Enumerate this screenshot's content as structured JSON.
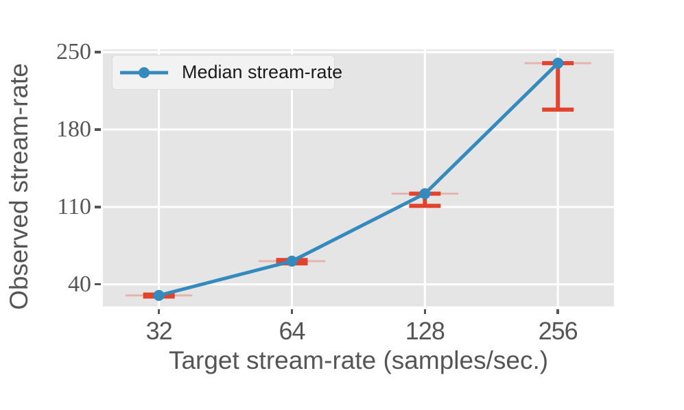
{
  "chart_data": {
    "type": "line",
    "title": "",
    "xlabel": "Target stream-rate (samples/sec.)",
    "ylabel": "Observed stream-rate",
    "x_scale": "log2",
    "xlim": [
      23.9,
      343
    ],
    "ylim": [
      20,
      252.5
    ],
    "x_ticks": [
      32,
      64,
      128,
      256
    ],
    "y_ticks": [
      40,
      110,
      180,
      250
    ],
    "grid": true,
    "legend_position": "upper-left",
    "series": [
      {
        "name": "Median stream-rate",
        "x": [
          32,
          64,
          128,
          256
        ],
        "median": [
          30,
          61,
          122,
          240
        ],
        "range_low": [
          29,
          59,
          111,
          198
        ],
        "range_high": [
          30.8,
          62,
          122,
          240
        ],
        "x_spread_factor": 1.19
      }
    ]
  },
  "legend": {
    "label": "Median stream-rate"
  },
  "colors": {
    "line_blue": "#348abd",
    "error_red": "#e2432d",
    "error_red_faint": "rgba(226,67,45,0.3)",
    "plot_bg": "#e5e5e5",
    "grid": "#ffffff",
    "tick_label": "#555555",
    "axis_label": "#555555",
    "legend_text": "#1a1a1a"
  }
}
